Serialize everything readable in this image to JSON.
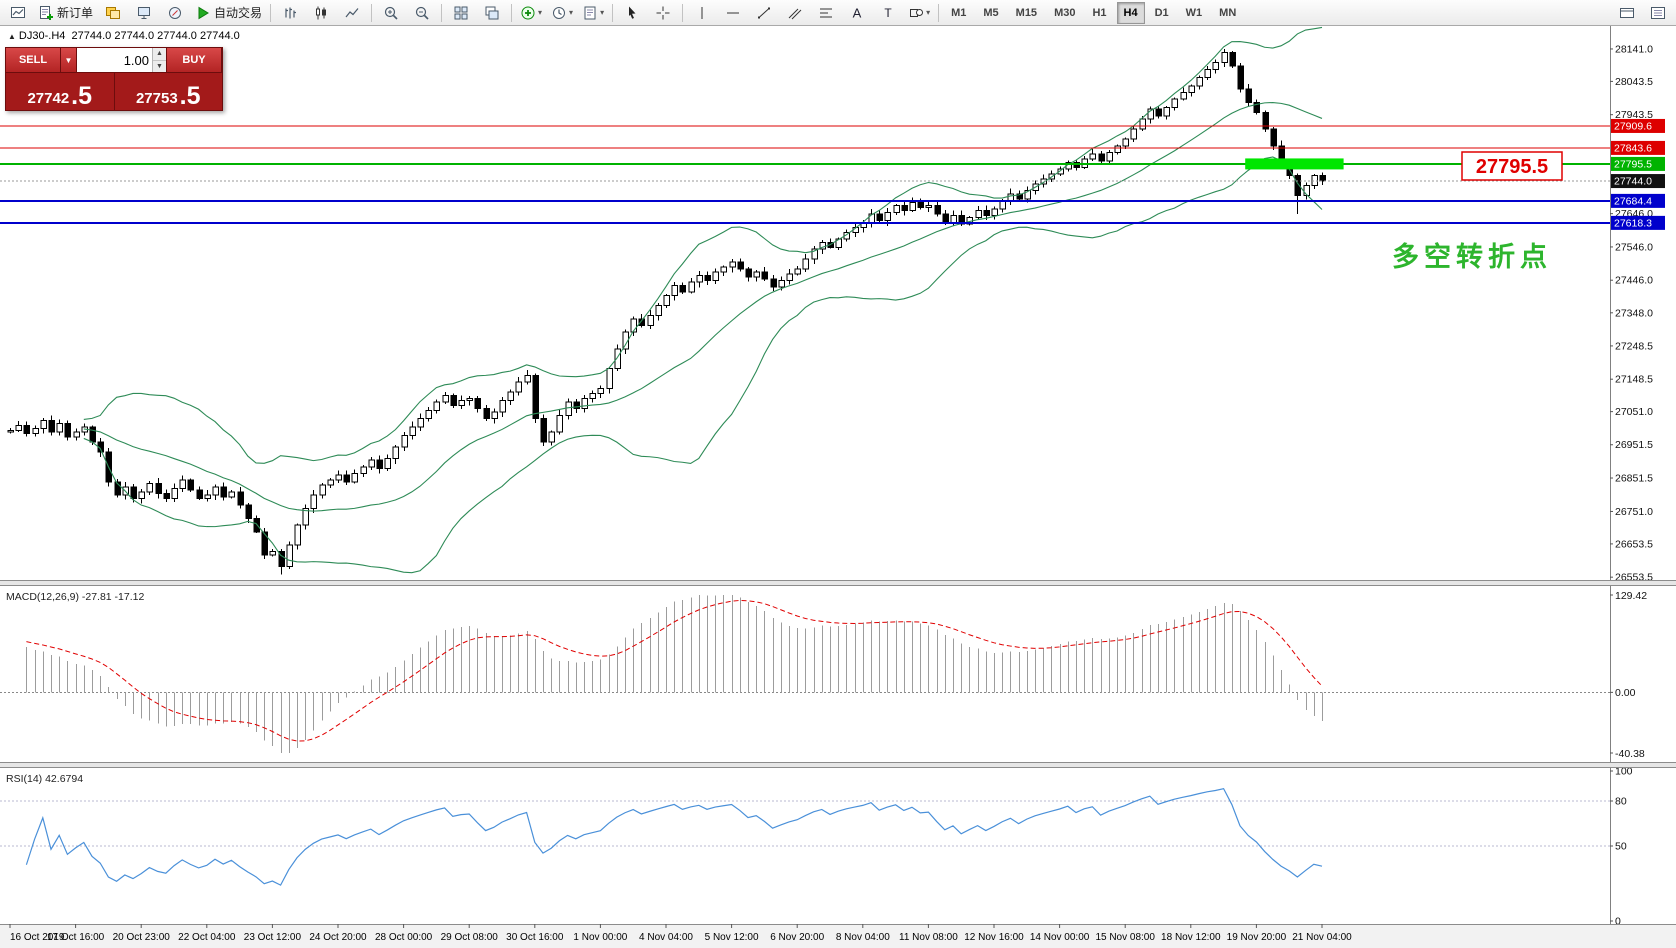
{
  "toolbar": {
    "items": [
      {
        "type": "icon",
        "name": "new-chart-icon",
        "icon": "chartwin"
      },
      {
        "type": "button",
        "name": "new-order-button",
        "icon": "docplus",
        "label": "新订单"
      },
      {
        "type": "icon",
        "name": "profiles-icon",
        "icon": "layers"
      },
      {
        "type": "icon",
        "name": "market-watch-icon",
        "icon": "monitor"
      },
      {
        "type": "icon",
        "name": "navigator-icon",
        "icon": "compass"
      },
      {
        "type": "button",
        "name": "auto-trading-button",
        "icon": "play",
        "label": "自动交易"
      },
      {
        "type": "sep"
      },
      {
        "type": "icon",
        "name": "bar-chart-icon",
        "icon": "bars"
      },
      {
        "type": "icon",
        "name": "candlestick-chart-icon",
        "icon": "candles"
      },
      {
        "type": "icon",
        "name": "line-chart-icon",
        "icon": "linechart"
      },
      {
        "type": "sep"
      },
      {
        "type": "icon",
        "name": "zoom-in-icon",
        "icon": "zoomin"
      },
      {
        "type": "icon",
        "name": "zoom-out-icon",
        "icon": "zoomout"
      },
      {
        "type": "sep"
      },
      {
        "type": "icon",
        "name": "tile-windows-icon",
        "icon": "tile"
      },
      {
        "type": "icon",
        "name": "cascade-windows-icon",
        "icon": "cascade"
      },
      {
        "type": "sep"
      },
      {
        "type": "icon",
        "name": "indicators-icon",
        "icon": "indplus",
        "caret": true
      },
      {
        "type": "icon",
        "name": "periods-icon",
        "icon": "clock",
        "caret": true
      },
      {
        "type": "icon",
        "name": "templates-icon",
        "icon": "template",
        "caret": true
      },
      {
        "type": "sep"
      },
      {
        "type": "icon",
        "name": "cursor-icon",
        "icon": "cursor"
      },
      {
        "type": "icon",
        "name": "crosshair-icon",
        "icon": "crosshair"
      },
      {
        "type": "sep"
      },
      {
        "type": "icon",
        "name": "vertical-line-icon",
        "icon": "vline"
      },
      {
        "type": "icon",
        "name": "horizontal-line-icon",
        "icon": "hline"
      },
      {
        "type": "icon",
        "name": "trendline-icon",
        "icon": "trend"
      },
      {
        "type": "icon",
        "name": "equidistant-channel-icon",
        "icon": "channel"
      },
      {
        "type": "icon",
        "name": "fibonacci-icon",
        "icon": "fibo"
      },
      {
        "type": "icon",
        "name": "text-icon",
        "icon": "textA"
      },
      {
        "type": "icon",
        "name": "text-label-icon",
        "icon": "labelT"
      },
      {
        "type": "icon",
        "name": "arrows-icon",
        "icon": "shapes",
        "caret": true
      },
      {
        "type": "sep"
      }
    ],
    "timeframes": [
      "M1",
      "M5",
      "M15",
      "M30",
      "H1",
      "H4",
      "D1",
      "W1",
      "MN"
    ],
    "active_timeframe": "H4",
    "right_items": [
      {
        "type": "icon",
        "name": "open-charts-icon",
        "icon": "winline"
      },
      {
        "type": "icon",
        "name": "window-list-icon",
        "icon": "winlist"
      }
    ]
  },
  "symbol_header": {
    "collapse": "▲",
    "title": "DJ30-.H4",
    "ohlc": "27744.0 27744.0 27744.0 27744.0"
  },
  "one_click": {
    "sell_label": "SELL",
    "buy_label": "BUY",
    "volume": "1.00",
    "sell_main": "27742",
    "sell_frac": ".5",
    "buy_main": "27753",
    "buy_frac": ".5"
  },
  "chart_data": {
    "type": "candlestick",
    "symbol": "DJ30-",
    "timeframe": "H4",
    "first_open": 26990,
    "closes": [
      26995,
      27010,
      26985,
      27000,
      27025,
      26990,
      27015,
      26975,
      26990,
      27005,
      26960,
      26930,
      26840,
      26800,
      26825,
      26790,
      26810,
      26835,
      26805,
      26790,
      26820,
      26845,
      26815,
      26790,
      26800,
      26825,
      26795,
      26810,
      26770,
      26730,
      26690,
      26620,
      26630,
      26585,
      26650,
      26710,
      26760,
      26800,
      26830,
      26845,
      26860,
      26840,
      26865,
      26885,
      26905,
      26880,
      26910,
      26945,
      26980,
      27005,
      27030,
      27055,
      27080,
      27100,
      27070,
      27085,
      27090,
      27060,
      27030,
      27050,
      27085,
      27110,
      27140,
      27160,
      27030,
      26960,
      26990,
      27040,
      27080,
      27060,
      27090,
      27105,
      27120,
      27180,
      27240,
      27290,
      27330,
      27310,
      27340,
      27370,
      27400,
      27430,
      27410,
      27440,
      27460,
      27445,
      27470,
      27485,
      27500,
      27480,
      27455,
      27470,
      27450,
      27425,
      27445,
      27465,
      27480,
      27510,
      27540,
      27560,
      27545,
      27570,
      27590,
      27605,
      27620,
      27645,
      27625,
      27650,
      27670,
      27655,
      27680,
      27665,
      27670,
      27645,
      27620,
      27640,
      27615,
      27635,
      27655,
      27640,
      27660,
      27685,
      27705,
      27690,
      27715,
      27735,
      27750,
      27765,
      27780,
      27800,
      27785,
      27810,
      27825,
      27805,
      27830,
      27850,
      27870,
      27900,
      27930,
      27960,
      27940,
      27965,
      27990,
      28010,
      28030,
      28055,
      28080,
      28100,
      28130,
      28090,
      28020,
      27980,
      27950,
      27900,
      27850,
      27800,
      27760,
      27700,
      27730,
      27760,
      27744
    ],
    "wick_overrides": {
      "33": {
        "low": 26562
      },
      "148": {
        "high": 28141
      },
      "157": {
        "low": 27645
      }
    },
    "label_every": 8,
    "time_labels": [
      "16 Oct 2019",
      "17 Oct 16:00",
      "20 Oct 23:00",
      "22 Oct 04:00",
      "23 Oct 12:00",
      "24 Oct 20:00",
      "28 Oct 00:00",
      "29 Oct 08:00",
      "30 Oct 16:00",
      "1 Nov 00:00",
      "4 Nov 04:00",
      "5 Nov 12:00",
      "6 Nov 20:00",
      "8 Nov 04:00",
      "11 Nov 08:00",
      "12 Nov 16:00",
      "14 Nov 00:00",
      "15 Nov 08:00",
      "18 Nov 12:00",
      "19 Nov 20:00",
      "21 Nov 04:00"
    ],
    "price_axis": {
      "ticks": [
        {
          "label": "28141.0",
          "price": 28141.0
        },
        {
          "label": "28043.5",
          "price": 28043.5
        },
        {
          "label": "27943.5",
          "price": 27943.5
        },
        {
          "label": "27646.0",
          "price": 27646.0
        },
        {
          "label": "27546.0",
          "price": 27546.0
        },
        {
          "label": "27446.0",
          "price": 27446.0
        },
        {
          "label": "27348.0",
          "price": 27348.0
        },
        {
          "label": "27248.5",
          "price": 27248.5
        },
        {
          "label": "27148.5",
          "price": 27148.5
        },
        {
          "label": "27051.0",
          "price": 27051.0
        },
        {
          "label": "26951.5",
          "price": 26951.5
        },
        {
          "label": "26851.5",
          "price": 26851.5
        },
        {
          "label": "26751.0",
          "price": 26751.0
        },
        {
          "label": "26653.5",
          "price": 26653.5
        },
        {
          "label": "26553.5",
          "price": 26553.5
        }
      ],
      "tags": [
        {
          "text": "27909.6",
          "price": 27909.6,
          "color": "#dd0000"
        },
        {
          "text": "27843.6",
          "price": 27843.6,
          "color": "#dd0000"
        },
        {
          "text": "27795.5",
          "price": 27795.5,
          "color": "#00b300"
        },
        {
          "text": "27744.0",
          "price": 27744.0,
          "color": "#111111"
        },
        {
          "text": "27684.4",
          "price": 27684.4,
          "color": "#0000cc"
        },
        {
          "text": "27618.3",
          "price": 27618.3,
          "color": "#0000cc"
        }
      ]
    },
    "hlines": [
      {
        "price": 27909.6,
        "color": "#dd0000",
        "width": 1
      },
      {
        "price": 27843.6,
        "color": "#dd0000",
        "width": 1
      },
      {
        "price": 27795.5,
        "color": "#00b300",
        "width": 2
      },
      {
        "price": 27684.4,
        "color": "#0000cc",
        "width": 2
      },
      {
        "price": 27618.3,
        "color": "#0000cc",
        "width": 2
      }
    ],
    "current_price": 27744.0,
    "objects": {
      "highlight_rect": {
        "from_idx": 151,
        "to_idx": 163,
        "price_top": 27812,
        "price_bottom": 27779,
        "color": "#00e600"
      },
      "price_callout": {
        "text": "27795.5",
        "color": "#e00000"
      },
      "annotation": {
        "text": "多空转折点",
        "color": "#2db52d"
      }
    },
    "indicators": {
      "bollinger": {
        "name": "Bollinger Bands",
        "period": 20,
        "deviation": 2,
        "color": "#2e8b57"
      },
      "macd": {
        "title": "MACD(12,26,9)",
        "values_text": "-27.81 -17.12",
        "scale_labels": [
          "129.42",
          "0.00",
          "-40.38"
        ]
      },
      "rsi": {
        "title": "RSI(14)",
        "value_text": "42.6794",
        "levels": [
          80,
          50
        ],
        "scale_labels": [
          {
            "label": "100",
            "value": 100
          },
          {
            "label": "80",
            "value": 80
          },
          {
            "label": "50",
            "value": 50
          },
          {
            "label": "0",
            "value": 0
          }
        ],
        "color": "#4a90d9"
      }
    }
  }
}
